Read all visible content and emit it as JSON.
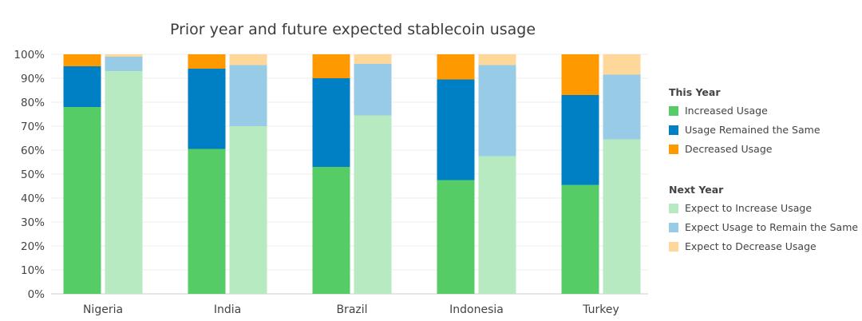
{
  "chart_data": {
    "type": "bar",
    "stacked": true,
    "title": "Prior year and future expected stablecoin usage",
    "categories": [
      "Nigeria",
      "India",
      "Brazil",
      "Indonesia",
      "Turkey"
    ],
    "ylim": [
      0,
      100
    ],
    "y_ticks": [
      "0%",
      "10%",
      "20%",
      "30%",
      "40%",
      "50%",
      "60%",
      "70%",
      "80%",
      "90%",
      "100%"
    ],
    "grid": true,
    "legend_position": "right",
    "groups": [
      {
        "name": "This Year",
        "series": [
          {
            "name": "Increased Usage",
            "color": "#55cc66",
            "values": [
              78,
              60.5,
              53,
              47.5,
              45.5
            ]
          },
          {
            "name": "Usage Remained the Same",
            "color": "#0080c4",
            "values": [
              17,
              33.5,
              37,
              42,
              37.5
            ]
          },
          {
            "name": "Decreased Usage",
            "color": "#ff9900",
            "values": [
              5,
              6,
              10,
              10.5,
              17
            ]
          }
        ]
      },
      {
        "name": "Next Year",
        "series": [
          {
            "name": "Expect to Increase Usage",
            "color": "#b8eac2",
            "values": [
              93,
              70,
              74.5,
              57.5,
              64.5
            ]
          },
          {
            "name": "Expect Usage to Remain the Same",
            "color": "#98cce6",
            "values": [
              6,
              25.5,
              21.5,
              38,
              27
            ]
          },
          {
            "name": "Expect to Decrease Usage",
            "color": "#fdd89a",
            "values": [
              1,
              4.5,
              4,
              4.5,
              8.5
            ]
          }
        ]
      }
    ]
  }
}
